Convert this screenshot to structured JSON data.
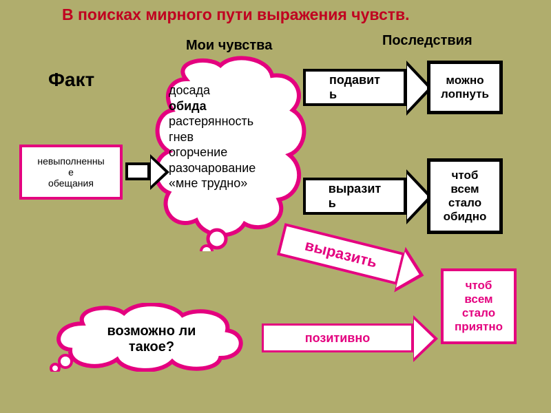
{
  "colors": {
    "background": "#b0ad6d",
    "pink": "#e4007f",
    "title": "#c00020",
    "black": "#000000",
    "white": "#ffffff"
  },
  "title": "В поисках мирного пути выражения чувств.",
  "labels": {
    "fact": "Факт",
    "feelings": "Мои чувства",
    "consequences": "Последствия"
  },
  "fact_box": "невыполненны\nе\nобещания",
  "feelings_list": [
    {
      "text": "досада",
      "bold": false
    },
    {
      "text": "обида",
      "bold": true
    },
    {
      "text": "растерянность",
      "bold": false
    },
    {
      "text": "гнев",
      "bold": false
    },
    {
      "text": "огорчение",
      "bold": false
    },
    {
      "text": "разочарование",
      "bold": false
    },
    {
      "text": "«мне трудно»",
      "bold": false
    }
  ],
  "arrows": {
    "suppress": "подавит\nь",
    "express": "выразит\nь",
    "express_pink": "выразить",
    "positive": "позитивно"
  },
  "outcomes": {
    "suppress": "можно\nлопнуть",
    "express_bad": "чтоб\nвсем\nстало\nобидно",
    "express_good": "чтоб\nвсем\nстало\nприятно"
  },
  "question": "возможно ли\nтакое?"
}
